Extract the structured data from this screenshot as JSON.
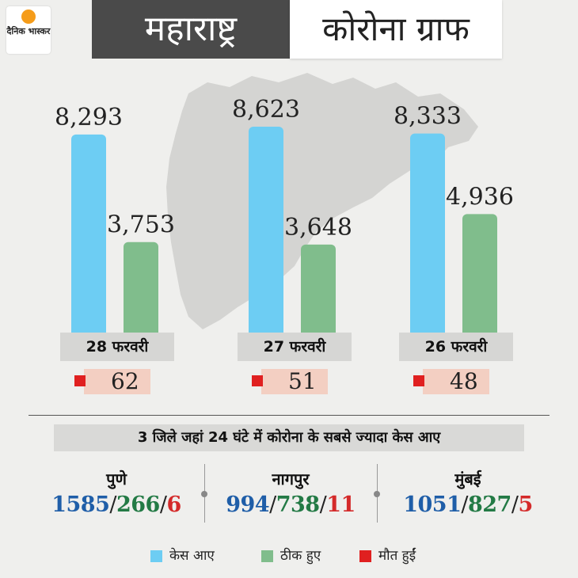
{
  "logo": {
    "text": "दैनिक भास्कर"
  },
  "title": {
    "left": "महाराष्ट्र",
    "right": "कोरोना ग्राफ"
  },
  "colors": {
    "cases": "#6dcdf3",
    "recovered": "#80bd8c",
    "deaths": "#e02020",
    "blue_text": "#1f5ea8",
    "green_text": "#237a45",
    "red_text": "#d42a2a"
  },
  "chart_data": {
    "type": "bar",
    "categories": [
      "28 फरवरी",
      "27 फरवरी",
      "26 फरवरी"
    ],
    "series": [
      {
        "name": "केस आए",
        "values": [
          8293,
          8623,
          8333
        ]
      },
      {
        "name": "ठीक हुए",
        "values": [
          3753,
          3648,
          4936
        ]
      },
      {
        "name": "मौत हुईं",
        "values": [
          62,
          51,
          48
        ]
      }
    ],
    "value_labels": [
      [
        "8,293",
        "3,753"
      ],
      [
        "8,623",
        "3,648"
      ],
      [
        "8,333",
        "4,936"
      ]
    ],
    "death_labels": [
      "62",
      "51",
      "48"
    ],
    "legend_position": "bottom",
    "grid": false
  },
  "districts": {
    "heading": "3 जिले जहां 24 घंटे में कोरोना के सबसे ज्यादा केस आए",
    "items": [
      {
        "name": "पुणे",
        "cases": "1585",
        "recovered": "266",
        "deaths": "6"
      },
      {
        "name": "नागपुर",
        "cases": "994",
        "recovered": "738",
        "deaths": "11"
      },
      {
        "name": "मुंबई",
        "cases": "1051",
        "recovered": "827",
        "deaths": "5"
      }
    ],
    "separator": "/"
  },
  "legend": [
    {
      "label": "केस आए",
      "icon": "square-blue"
    },
    {
      "label": "ठीक हुए",
      "icon": "square-green"
    },
    {
      "label": "मौत हुईं",
      "icon": "square-red"
    }
  ]
}
